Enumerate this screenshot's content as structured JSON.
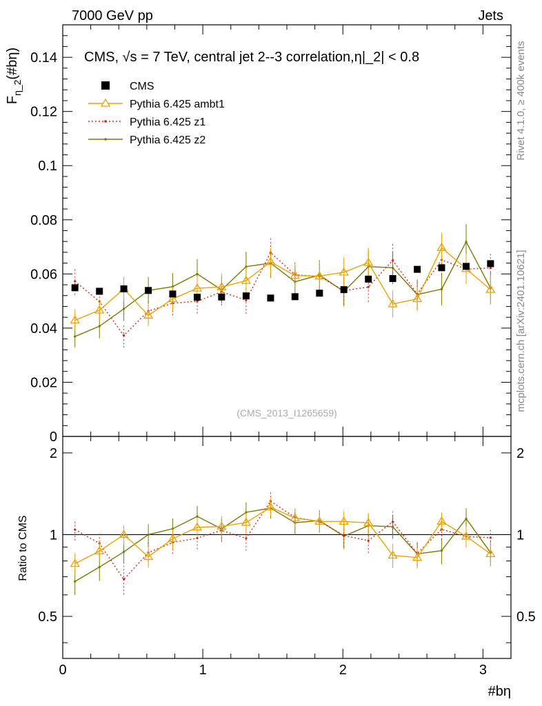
{
  "header": {
    "left": "7000 GeV pp",
    "right": "Jets"
  },
  "side": {
    "rivet": "Rivet 4.1.0, ≥ 400k events",
    "mcplots": "mcplots.cern.ch [arXiv:2401.10621]"
  },
  "chart_data": {
    "type": "scatter",
    "title": "CMS, √s = 7 TeV, central jet 2--3 correlation,η|_2| < 0.8",
    "ylabel": "F_η_2(#bη)",
    "xlabel": "#bη",
    "ratio_ylabel": "Ratio to CMS",
    "watermark": "(CMS_2013_I1265659)",
    "xlim": [
      0,
      3.2
    ],
    "ylim": [
      0,
      0.152
    ],
    "ratio_ylim": [
      0.35,
      2.3
    ],
    "x_ticks": [
      "0",
      "1",
      "2",
      "3"
    ],
    "y_ticks": [
      "0",
      "0.02",
      "0.04",
      "0.06",
      "0.08",
      "0.1",
      "0.12",
      "0.14"
    ],
    "ratio_ticks": [
      "0.5",
      "1",
      "2"
    ],
    "x": [
      0.087,
      0.262,
      0.436,
      0.611,
      0.785,
      0.96,
      1.134,
      1.309,
      1.484,
      1.658,
      1.833,
      2.007,
      2.182,
      2.356,
      2.531,
      2.705,
      2.88,
      3.054
    ],
    "series": [
      {
        "name": "CMS",
        "color": "#000000",
        "values": [
          0.0549,
          0.0536,
          0.0545,
          0.0539,
          0.0526,
          0.0514,
          0.0515,
          0.0519,
          0.0511,
          0.0516,
          0.0529,
          0.0542,
          0.0581,
          0.0583,
          0.0617,
          0.0623,
          0.0628,
          0.0638
        ]
      },
      {
        "name": "Pythia 6.425 ambt1",
        "color": "#f0a000",
        "values": [
          0.0429,
          0.0466,
          0.0545,
          0.0447,
          0.0508,
          0.0547,
          0.0552,
          0.0575,
          0.0645,
          0.0594,
          0.0592,
          0.0606,
          0.0642,
          0.0489,
          0.0508,
          0.0697,
          0.0619,
          0.0542
        ],
        "errors": [
          0.004,
          0.004,
          0.0045,
          0.004,
          0.0045,
          0.0045,
          0.005,
          0.005,
          0.005,
          0.005,
          0.0055,
          0.0055,
          0.0055,
          0.005,
          0.0045,
          0.0055,
          0.0055,
          0.0055
        ]
      },
      {
        "name": "Pythia 6.425 z1",
        "color": "#dd2211",
        "values": [
          0.0573,
          0.0498,
          0.0373,
          0.0463,
          0.0492,
          0.0499,
          0.0534,
          0.0503,
          0.0679,
          0.0597,
          0.0591,
          0.0538,
          0.0552,
          0.065,
          0.0526,
          0.0652,
          0.0618,
          0.0622
        ],
        "errors": [
          0.005,
          0.005,
          0.0045,
          0.0045,
          0.0045,
          0.0045,
          0.005,
          0.005,
          0.0055,
          0.005,
          0.005,
          0.005,
          0.0055,
          0.006,
          0.005,
          0.0055,
          0.0055,
          0.0055
        ]
      },
      {
        "name": "Pythia 6.425 z2",
        "color": "#7a7a00",
        "values": [
          0.0369,
          0.0407,
          0.0471,
          0.0539,
          0.0553,
          0.06,
          0.0541,
          0.0627,
          0.064,
          0.0571,
          0.0596,
          0.0535,
          0.0627,
          0.0623,
          0.0524,
          0.0544,
          0.0719,
          0.0548
        ],
        "errors": [
          0.004,
          0.0045,
          0.0045,
          0.005,
          0.005,
          0.0055,
          0.005,
          0.0055,
          0.0055,
          0.0055,
          0.0055,
          0.0055,
          0.006,
          0.006,
          0.0055,
          0.006,
          0.0065,
          0.006
        ]
      }
    ]
  }
}
